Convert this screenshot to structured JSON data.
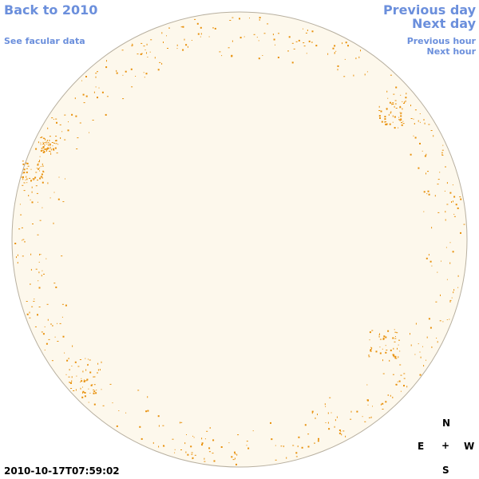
{
  "navigation": {
    "back": "Back to 2010",
    "facular": "See facular data",
    "previous_day": "Previous day",
    "next_day": "Next day",
    "previous_hour": "Previous hour",
    "next_hour": "Next hour"
  },
  "timestamp": "2010-10-17T07:59:02",
  "compass": {
    "north": "N",
    "east": "E",
    "center": "+",
    "west": "W",
    "south": "S"
  }
}
